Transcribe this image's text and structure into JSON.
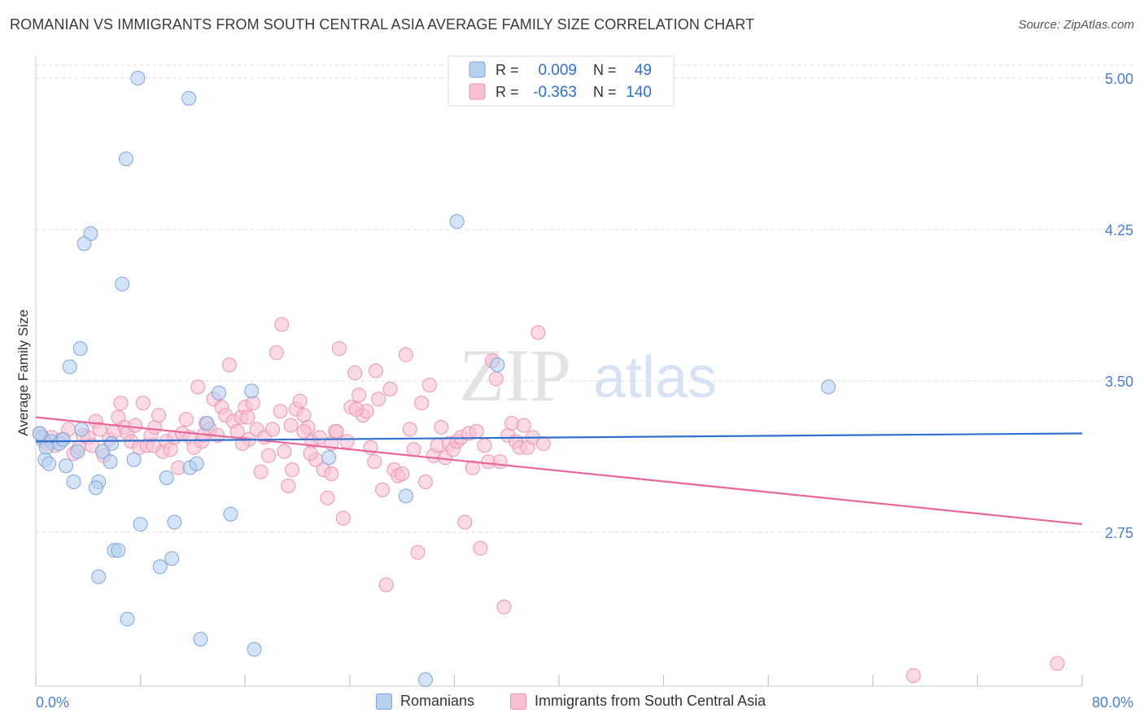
{
  "header": {
    "title": "ROMANIAN VS IMMIGRANTS FROM SOUTH CENTRAL ASIA AVERAGE FAMILY SIZE CORRELATION CHART",
    "source": "Source: ZipAtlas.com"
  },
  "watermark": {
    "zip": "ZIP",
    "atlas": "atlas"
  },
  "colors": {
    "blue_fill": "#b8d0f0",
    "blue_stroke": "#7fa6dc",
    "blue_line": "#2f6fcf",
    "pink_fill": "#f7c1d2",
    "pink_stroke": "#ee94b2",
    "pink_line": "#e8669a",
    "axis_label": "#4a7fcf",
    "grid": "#dddddd"
  },
  "legend_top": {
    "rows": [
      {
        "r_label": "R =",
        "r_value": "0.009",
        "n_label": "N =",
        "n_value": "49",
        "color": "blue"
      },
      {
        "r_label": "R =",
        "r_value": "-0.363",
        "n_label": "N =",
        "n_value": "140",
        "color": "pink"
      }
    ]
  },
  "legend_bottom": [
    {
      "label": "Romanians",
      "color": "blue"
    },
    {
      "label": "Immigrants from South Central Asia",
      "color": "pink"
    }
  ],
  "chart_data": {
    "type": "scatter",
    "title": "ROMANIAN VS IMMIGRANTS FROM SOUTH CENTRAL ASIA AVERAGE FAMILY SIZE CORRELATION CHART",
    "xlabel": "",
    "ylabel": "Average Family Size",
    "xlim": [
      0,
      80
    ],
    "ylim": [
      2.0,
      5.1
    ],
    "x_tick_labels": [
      "0.0%",
      "80.0%"
    ],
    "y_ticks": [
      2.75,
      3.5,
      4.25,
      5.0
    ],
    "y_tick_labels": [
      "2.75",
      "3.50",
      "4.25",
      "5.00"
    ],
    "grid": "horizontal dashed",
    "legend_position": "top-center",
    "series": [
      {
        "name": "Romanians",
        "color": "blue",
        "trend": {
          "x": [
            0,
            80
          ],
          "y": [
            3.2,
            3.24
          ]
        },
        "points": [
          [
            7.8,
            5.0
          ],
          [
            11.7,
            4.9
          ],
          [
            6.9,
            4.6
          ],
          [
            32.2,
            4.29
          ],
          [
            4.2,
            4.23
          ],
          [
            3.7,
            4.18
          ],
          [
            6.6,
            3.98
          ],
          [
            3.4,
            3.66
          ],
          [
            2.6,
            3.57
          ],
          [
            35.3,
            3.58
          ],
          [
            60.6,
            3.47
          ],
          [
            16.5,
            3.45
          ],
          [
            14.0,
            3.44
          ],
          [
            0.5,
            3.22
          ],
          [
            1.2,
            3.2
          ],
          [
            1.8,
            3.19
          ],
          [
            0.8,
            3.17
          ],
          [
            2.1,
            3.21
          ],
          [
            3.5,
            3.26
          ],
          [
            5.8,
            3.19
          ],
          [
            13.1,
            3.29
          ],
          [
            0.7,
            3.11
          ],
          [
            1.0,
            3.09
          ],
          [
            2.3,
            3.08
          ],
          [
            3.2,
            3.15
          ],
          [
            5.1,
            3.15
          ],
          [
            5.7,
            3.1
          ],
          [
            7.5,
            3.11
          ],
          [
            11.8,
            3.07
          ],
          [
            12.3,
            3.09
          ],
          [
            22.4,
            3.12
          ],
          [
            2.9,
            3.0
          ],
          [
            4.8,
            3.0
          ],
          [
            4.6,
            2.97
          ],
          [
            10.0,
            3.02
          ],
          [
            28.3,
            2.93
          ],
          [
            14.9,
            2.84
          ],
          [
            10.6,
            2.8
          ],
          [
            8.0,
            2.79
          ],
          [
            6.0,
            2.66
          ],
          [
            6.3,
            2.66
          ],
          [
            10.4,
            2.62
          ],
          [
            9.5,
            2.58
          ],
          [
            4.8,
            2.53
          ],
          [
            7.0,
            2.32
          ],
          [
            12.6,
            2.22
          ],
          [
            16.7,
            2.17
          ],
          [
            29.8,
            2.02
          ],
          [
            0.3,
            3.24
          ]
        ]
      },
      {
        "name": "Immigrants from South Central Asia",
        "color": "pink",
        "trend": {
          "x": [
            0,
            80
          ],
          "y": [
            3.32,
            2.79
          ]
        },
        "points": [
          [
            0.3,
            3.24
          ],
          [
            0.6,
            3.2
          ],
          [
            0.9,
            3.19
          ],
          [
            1.2,
            3.22
          ],
          [
            1.5,
            3.18
          ],
          [
            2.0,
            3.21
          ],
          [
            2.5,
            3.26
          ],
          [
            2.9,
            3.14
          ],
          [
            3.3,
            3.17
          ],
          [
            3.6,
            3.23
          ],
          [
            4.0,
            3.22
          ],
          [
            4.3,
            3.18
          ],
          [
            4.6,
            3.3
          ],
          [
            4.9,
            3.26
          ],
          [
            5.2,
            3.13
          ],
          [
            5.6,
            3.21
          ],
          [
            6.0,
            3.25
          ],
          [
            6.3,
            3.32
          ],
          [
            6.5,
            3.39
          ],
          [
            6.8,
            3.27
          ],
          [
            7.0,
            3.24
          ],
          [
            7.3,
            3.2
          ],
          [
            7.6,
            3.28
          ],
          [
            7.9,
            3.17
          ],
          [
            8.2,
            3.39
          ],
          [
            8.5,
            3.18
          ],
          [
            8.8,
            3.23
          ],
          [
            9.1,
            3.27
          ],
          [
            9.4,
            3.33
          ],
          [
            9.7,
            3.15
          ],
          [
            10.0,
            3.2
          ],
          [
            10.3,
            3.16
          ],
          [
            10.6,
            3.22
          ],
          [
            10.9,
            3.07
          ],
          [
            11.2,
            3.24
          ],
          [
            11.5,
            3.31
          ],
          [
            11.8,
            3.22
          ],
          [
            12.1,
            3.17
          ],
          [
            12.4,
            3.47
          ],
          [
            12.7,
            3.2
          ],
          [
            13.0,
            3.29
          ],
          [
            13.3,
            3.26
          ],
          [
            13.6,
            3.41
          ],
          [
            13.9,
            3.23
          ],
          [
            14.2,
            3.37
          ],
          [
            14.5,
            3.33
          ],
          [
            14.8,
            3.58
          ],
          [
            15.1,
            3.3
          ],
          [
            15.4,
            3.25
          ],
          [
            15.7,
            3.32
          ],
          [
            16.0,
            3.37
          ],
          [
            16.3,
            3.21
          ],
          [
            16.6,
            3.39
          ],
          [
            16.9,
            3.26
          ],
          [
            17.2,
            3.05
          ],
          [
            17.5,
            3.22
          ],
          [
            17.8,
            3.13
          ],
          [
            18.1,
            3.26
          ],
          [
            18.4,
            3.64
          ],
          [
            18.7,
            3.35
          ],
          [
            19.0,
            3.15
          ],
          [
            19.3,
            2.98
          ],
          [
            19.6,
            3.06
          ],
          [
            19.9,
            3.36
          ],
          [
            20.2,
            3.4
          ],
          [
            20.5,
            3.33
          ],
          [
            20.8,
            3.27
          ],
          [
            21.1,
            3.2
          ],
          [
            21.4,
            3.11
          ],
          [
            21.7,
            3.22
          ],
          [
            22.0,
            3.06
          ],
          [
            22.3,
            2.92
          ],
          [
            22.6,
            3.04
          ],
          [
            22.9,
            3.25
          ],
          [
            23.2,
            3.66
          ],
          [
            23.5,
            2.82
          ],
          [
            23.8,
            3.2
          ],
          [
            24.1,
            3.37
          ],
          [
            24.4,
            3.54
          ],
          [
            24.7,
            3.43
          ],
          [
            25.0,
            3.33
          ],
          [
            25.3,
            3.35
          ],
          [
            25.6,
            3.17
          ],
          [
            25.9,
            3.1
          ],
          [
            26.2,
            3.41
          ],
          [
            26.5,
            2.96
          ],
          [
            26.8,
            2.49
          ],
          [
            27.1,
            3.46
          ],
          [
            27.4,
            3.06
          ],
          [
            27.7,
            3.03
          ],
          [
            28.0,
            3.04
          ],
          [
            28.3,
            3.63
          ],
          [
            28.6,
            3.26
          ],
          [
            28.9,
            3.16
          ],
          [
            29.2,
            2.65
          ],
          [
            29.5,
            3.39
          ],
          [
            29.8,
            3.0
          ],
          [
            30.1,
            3.48
          ],
          [
            30.4,
            3.13
          ],
          [
            30.7,
            3.18
          ],
          [
            31.0,
            3.27
          ],
          [
            31.3,
            3.12
          ],
          [
            31.6,
            3.19
          ],
          [
            31.9,
            3.16
          ],
          [
            32.2,
            3.2
          ],
          [
            32.5,
            3.22
          ],
          [
            32.8,
            2.8
          ],
          [
            33.1,
            3.24
          ],
          [
            33.4,
            3.07
          ],
          [
            33.7,
            3.25
          ],
          [
            34.0,
            2.67
          ],
          [
            34.3,
            3.18
          ],
          [
            34.6,
            3.1
          ],
          [
            34.9,
            3.6
          ],
          [
            35.2,
            3.51
          ],
          [
            35.5,
            3.1
          ],
          [
            35.8,
            2.38
          ],
          [
            36.1,
            3.23
          ],
          [
            36.4,
            3.29
          ],
          [
            36.7,
            3.2
          ],
          [
            37.0,
            3.17
          ],
          [
            37.3,
            3.28
          ],
          [
            37.6,
            3.17
          ],
          [
            38.0,
            3.22
          ],
          [
            38.4,
            3.74
          ],
          [
            38.8,
            3.19
          ],
          [
            18.8,
            3.78
          ],
          [
            20.5,
            3.25
          ],
          [
            23.0,
            3.25
          ],
          [
            26.0,
            3.55
          ],
          [
            21.0,
            3.14
          ],
          [
            24.5,
            3.36
          ],
          [
            67.1,
            2.04
          ],
          [
            78.1,
            2.1
          ],
          [
            15.8,
            3.19
          ],
          [
            16.2,
            3.32
          ],
          [
            19.5,
            3.28
          ],
          [
            22.6,
            3.19
          ],
          [
            12.8,
            3.23
          ],
          [
            9.0,
            3.18
          ]
        ]
      }
    ]
  }
}
